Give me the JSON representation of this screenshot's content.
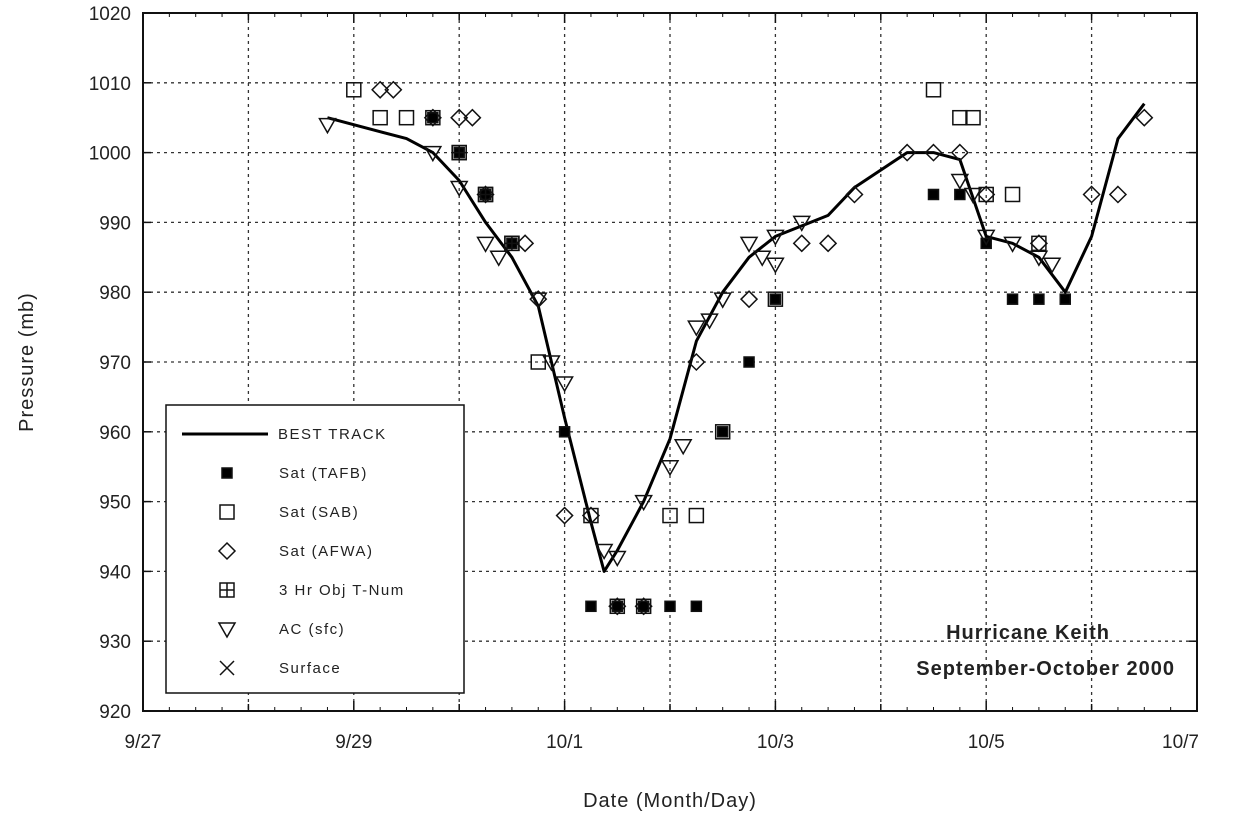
{
  "chart_data": {
    "type": "scatter",
    "title": "",
    "xlabel": "Date (Month/Day)",
    "ylabel": "Pressure (mb)",
    "x_unit": "date",
    "xlim": [
      "2000-09-27T00:00",
      "2000-10-07T00:00"
    ],
    "ylim": [
      920,
      1020
    ],
    "x_ticks": [
      "9/27",
      "9/29",
      "10/1",
      "10/3",
      "10/5",
      "10/7"
    ],
    "y_ticks": [
      920,
      930,
      940,
      950,
      960,
      970,
      980,
      990,
      1000,
      1010,
      1020
    ],
    "grid": true,
    "legend_position": "bottom-left",
    "annotations": [
      "Hurricane Keith",
      "September-October 2000"
    ],
    "series": [
      {
        "name": "BEST TRACK",
        "marker": "line",
        "points": [
          {
            "x": "2000-09-28T18:00",
            "y": 1005
          },
          {
            "x": "2000-09-29T06:00",
            "y": 1003
          },
          {
            "x": "2000-09-29T12:00",
            "y": 1002
          },
          {
            "x": "2000-09-29T18:00",
            "y": 1000
          },
          {
            "x": "2000-09-30T00:00",
            "y": 996
          },
          {
            "x": "2000-09-30T06:00",
            "y": 990
          },
          {
            "x": "2000-09-30T12:00",
            "y": 985
          },
          {
            "x": "2000-09-30T18:00",
            "y": 978
          },
          {
            "x": "2000-10-01T00:00",
            "y": 962
          },
          {
            "x": "2000-10-01T06:00",
            "y": 947
          },
          {
            "x": "2000-10-01T09:00",
            "y": 940
          },
          {
            "x": "2000-10-01T12:00",
            "y": 943
          },
          {
            "x": "2000-10-01T18:00",
            "y": 950
          },
          {
            "x": "2000-10-02T00:00",
            "y": 959
          },
          {
            "x": "2000-10-02T06:00",
            "y": 973
          },
          {
            "x": "2000-10-02T12:00",
            "y": 980
          },
          {
            "x": "2000-10-02T18:00",
            "y": 985
          },
          {
            "x": "2000-10-03T00:00",
            "y": 988
          },
          {
            "x": "2000-10-03T12:00",
            "y": 991
          },
          {
            "x": "2000-10-03T18:00",
            "y": 995
          },
          {
            "x": "2000-10-04T06:00",
            "y": 1000
          },
          {
            "x": "2000-10-04T12:00",
            "y": 1000
          },
          {
            "x": "2000-10-04T18:00",
            "y": 999
          },
          {
            "x": "2000-10-05T00:00",
            "y": 988
          },
          {
            "x": "2000-10-05T06:00",
            "y": 987
          },
          {
            "x": "2000-10-05T12:00",
            "y": 985
          },
          {
            "x": "2000-10-05T18:00",
            "y": 980
          },
          {
            "x": "2000-10-06T00:00",
            "y": 988
          },
          {
            "x": "2000-10-06T06:00",
            "y": 1002
          },
          {
            "x": "2000-10-06T12:00",
            "y": 1007
          }
        ]
      },
      {
        "name": "Sat (TAFB)",
        "marker": "filled-square",
        "points": [
          {
            "x": "2000-09-29T18:00",
            "y": 1005
          },
          {
            "x": "2000-09-30T00:00",
            "y": 1000
          },
          {
            "x": "2000-09-30T06:00",
            "y": 994
          },
          {
            "x": "2000-09-30T12:00",
            "y": 987
          },
          {
            "x": "2000-10-01T00:00",
            "y": 960
          },
          {
            "x": "2000-10-01T06:00",
            "y": 935
          },
          {
            "x": "2000-10-01T12:00",
            "y": 935
          },
          {
            "x": "2000-10-01T18:00",
            "y": 935
          },
          {
            "x": "2000-10-02T00:00",
            "y": 935
          },
          {
            "x": "2000-10-02T06:00",
            "y": 935
          },
          {
            "x": "2000-10-02T12:00",
            "y": 960
          },
          {
            "x": "2000-10-02T18:00",
            "y": 970
          },
          {
            "x": "2000-10-03T00:00",
            "y": 979
          },
          {
            "x": "2000-10-04T12:00",
            "y": 994
          },
          {
            "x": "2000-10-04T18:00",
            "y": 994
          },
          {
            "x": "2000-10-05T00:00",
            "y": 987
          },
          {
            "x": "2000-10-05T06:00",
            "y": 979
          },
          {
            "x": "2000-10-05T12:00",
            "y": 979
          },
          {
            "x": "2000-10-05T18:00",
            "y": 979
          }
        ]
      },
      {
        "name": "Sat (SAB)",
        "marker": "open-square",
        "points": [
          {
            "x": "2000-09-29T00:00",
            "y": 1009
          },
          {
            "x": "2000-09-29T06:00",
            "y": 1005
          },
          {
            "x": "2000-09-29T12:00",
            "y": 1005
          },
          {
            "x": "2000-09-29T18:00",
            "y": 1005
          },
          {
            "x": "2000-09-30T00:00",
            "y": 1000
          },
          {
            "x": "2000-09-30T06:00",
            "y": 994
          },
          {
            "x": "2000-09-30T12:00",
            "y": 987
          },
          {
            "x": "2000-09-30T18:00",
            "y": 970
          },
          {
            "x": "2000-10-01T06:00",
            "y": 948
          },
          {
            "x": "2000-10-01T12:00",
            "y": 935
          },
          {
            "x": "2000-10-01T18:00",
            "y": 935
          },
          {
            "x": "2000-10-02T00:00",
            "y": 948
          },
          {
            "x": "2000-10-02T06:00",
            "y": 948
          },
          {
            "x": "2000-10-02T12:00",
            "y": 960
          },
          {
            "x": "2000-10-03T00:00",
            "y": 979
          },
          {
            "x": "2000-10-04T12:00",
            "y": 1009
          },
          {
            "x": "2000-10-04T18:00",
            "y": 1005
          },
          {
            "x": "2000-10-05T00:00",
            "y": 994
          },
          {
            "x": "2000-10-05T06:00",
            "y": 994
          },
          {
            "x": "2000-10-05T12:00",
            "y": 987
          },
          {
            "x": "2000-10-04T21:00",
            "y": 1005
          }
        ]
      },
      {
        "name": "Sat (AFWA)",
        "marker": "open-diamond",
        "points": [
          {
            "x": "2000-09-29T06:00",
            "y": 1009
          },
          {
            "x": "2000-09-29T09:00",
            "y": 1009
          },
          {
            "x": "2000-09-29T18:00",
            "y": 1005
          },
          {
            "x": "2000-09-30T00:00",
            "y": 1005
          },
          {
            "x": "2000-09-30T03:00",
            "y": 1005
          },
          {
            "x": "2000-09-30T06:00",
            "y": 994
          },
          {
            "x": "2000-09-30T15:00",
            "y": 987
          },
          {
            "x": "2000-09-30T18:00",
            "y": 979
          },
          {
            "x": "2000-10-01T00:00",
            "y": 948
          },
          {
            "x": "2000-10-01T06:00",
            "y": 948
          },
          {
            "x": "2000-10-01T12:00",
            "y": 935
          },
          {
            "x": "2000-10-01T18:00",
            "y": 935
          },
          {
            "x": "2000-10-02T06:00",
            "y": 970
          },
          {
            "x": "2000-10-02T18:00",
            "y": 979
          },
          {
            "x": "2000-10-03T06:00",
            "y": 987
          },
          {
            "x": "2000-10-03T12:00",
            "y": 987
          },
          {
            "x": "2000-10-03T18:00",
            "y": 994
          },
          {
            "x": "2000-10-04T06:00",
            "y": 1000
          },
          {
            "x": "2000-10-04T12:00",
            "y": 1000
          },
          {
            "x": "2000-10-04T18:00",
            "y": 1000
          },
          {
            "x": "2000-10-05T00:00",
            "y": 994
          },
          {
            "x": "2000-10-05T12:00",
            "y": 987
          },
          {
            "x": "2000-10-06T00:00",
            "y": 994
          },
          {
            "x": "2000-10-06T06:00",
            "y": 994
          },
          {
            "x": "2000-10-06T12:00",
            "y": 1005
          }
        ]
      },
      {
        "name": "3 Hr Obj T-Num",
        "marker": "crossed-square",
        "points": [
          {
            "x": "2000-09-30T00:00",
            "y": 1000
          },
          {
            "x": "2000-09-30T06:00",
            "y": 994
          },
          {
            "x": "2000-09-30T12:00",
            "y": 987
          }
        ]
      },
      {
        "name": "AC (sfc)",
        "marker": "open-triangle-down",
        "points": [
          {
            "x": "2000-09-28T18:00",
            "y": 1004
          },
          {
            "x": "2000-09-29T18:00",
            "y": 1000
          },
          {
            "x": "2000-09-30T00:00",
            "y": 995
          },
          {
            "x": "2000-09-30T06:00",
            "y": 987
          },
          {
            "x": "2000-09-30T09:00",
            "y": 985
          },
          {
            "x": "2000-09-30T18:00",
            "y": 979
          },
          {
            "x": "2000-09-30T21:00",
            "y": 970
          },
          {
            "x": "2000-10-01T00:00",
            "y": 967
          },
          {
            "x": "2000-10-01T09:00",
            "y": 943
          },
          {
            "x": "2000-10-01T12:00",
            "y": 942
          },
          {
            "x": "2000-10-01T18:00",
            "y": 950
          },
          {
            "x": "2000-10-02T00:00",
            "y": 955
          },
          {
            "x": "2000-10-02T03:00",
            "y": 958
          },
          {
            "x": "2000-10-02T06:00",
            "y": 975
          },
          {
            "x": "2000-10-02T09:00",
            "y": 976
          },
          {
            "x": "2000-10-02T12:00",
            "y": 979
          },
          {
            "x": "2000-10-02T18:00",
            "y": 987
          },
          {
            "x": "2000-10-02T21:00",
            "y": 985
          },
          {
            "x": "2000-10-03T00:00",
            "y": 984
          },
          {
            "x": "2000-10-03T00:00",
            "y": 988
          },
          {
            "x": "2000-10-03T06:00",
            "y": 990
          },
          {
            "x": "2000-10-04T18:00",
            "y": 996
          },
          {
            "x": "2000-10-04T21:00",
            "y": 994
          },
          {
            "x": "2000-10-05T00:00",
            "y": 988
          },
          {
            "x": "2000-10-05T06:00",
            "y": 987
          },
          {
            "x": "2000-10-05T12:00",
            "y": 985
          },
          {
            "x": "2000-10-05T15:00",
            "y": 984
          }
        ]
      },
      {
        "name": "Surface",
        "marker": "x",
        "points": []
      }
    ]
  }
}
